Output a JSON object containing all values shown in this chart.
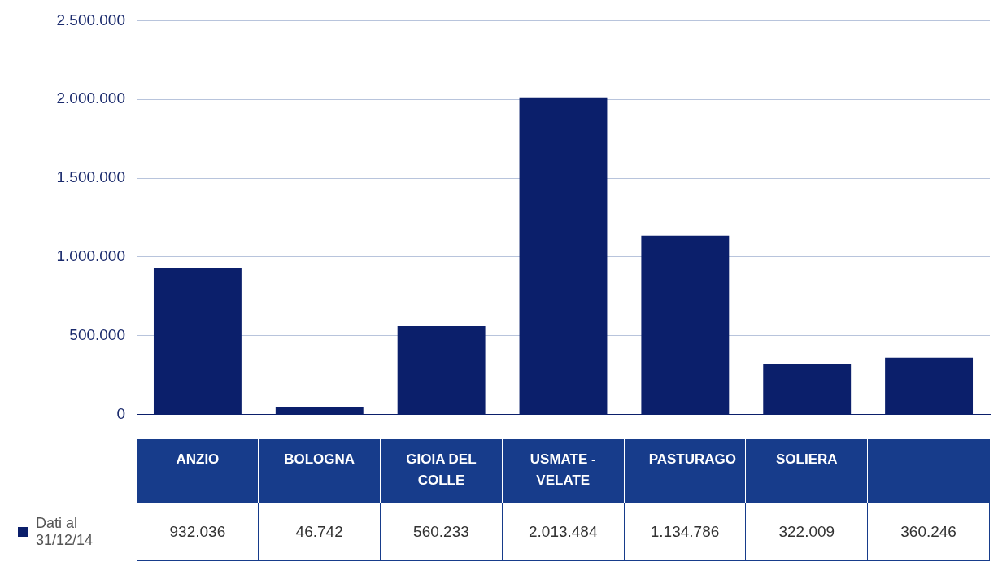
{
  "chart_data": {
    "type": "bar",
    "categories": [
      "ANZIO",
      "BOLOGNA",
      "GIOIA DEL COLLE",
      "USMATE - VELATE",
      "PASTURAGO",
      "SOLIERA",
      null
    ],
    "series": [
      {
        "name": "Dati al 31/12/14",
        "color": "#0b1f6b",
        "values": [
          932036,
          46742,
          560233,
          2013484,
          1134786,
          322009,
          360246
        ],
        "value_labels": [
          "932.036",
          "46.742",
          "560.233",
          "2.013.484",
          "1.134.786",
          "322.009",
          "360.246"
        ]
      }
    ],
    "ylim": [
      0,
      2500000
    ],
    "yticks": [
      {
        "value": 0,
        "label": "0"
      },
      {
        "value": 500000,
        "label": "500.000"
      },
      {
        "value": 1000000,
        "label": "1.000.000"
      },
      {
        "value": 1500000,
        "label": "1.500.000"
      },
      {
        "value": 2000000,
        "label": "2.000.000"
      },
      {
        "value": 2500000,
        "label": "2.500.000"
      }
    ],
    "grid": "y",
    "legend": "bottom left"
  }
}
